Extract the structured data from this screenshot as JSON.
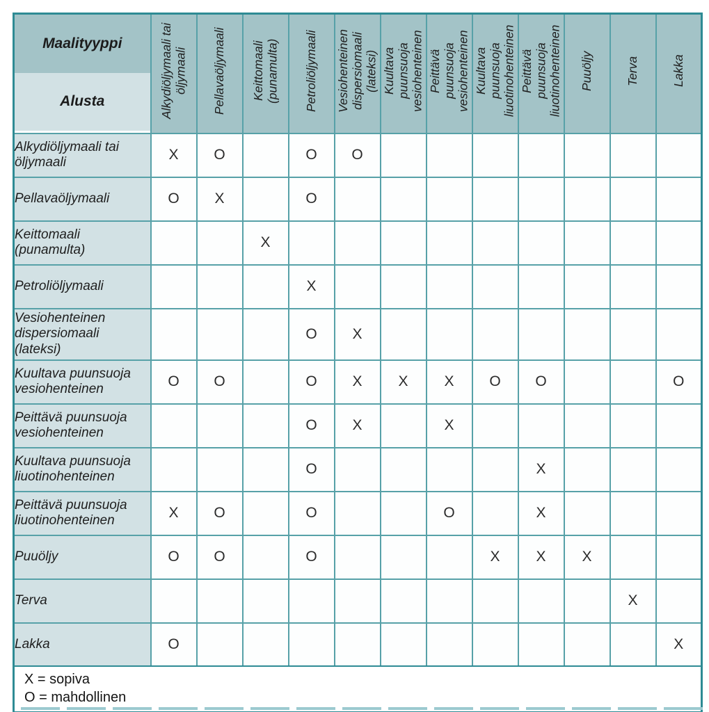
{
  "table": {
    "corner_top": "Maalityyppi",
    "corner_bottom": "Alusta",
    "columns": [
      "Alkydiöljymaali tai\nöljymaali",
      "Pellavaöljymaali",
      "Keittomaali\n(punamulta)",
      "Petroliöljymaali",
      "Vesiohenteinen\ndispersiomaali\n(lateksi)",
      "Kuultava\npuunsuoja\nvesiohenteinen",
      "Peittävä\npuunsuoja\nvesiohenteinen",
      "Kuultava\npuunsuoja\nliuotinohenteinen",
      "Peittävä\npuunsuoja\nliuotinohenteinen",
      "Puuöljy",
      "Terva",
      "Lakka"
    ],
    "rows": [
      {
        "label": "Alkydiöljymaali tai\nöljymaali",
        "marks": [
          "X",
          "O",
          "",
          "O",
          "O",
          "",
          "",
          "",
          "",
          "",
          "",
          ""
        ]
      },
      {
        "label": "Pellavaöljymaali",
        "marks": [
          "O",
          "X",
          "",
          "O",
          "",
          "",
          "",
          "",
          "",
          "",
          "",
          ""
        ]
      },
      {
        "label": "Keittomaali\n(punamulta)",
        "marks": [
          "",
          "",
          "X",
          "",
          "",
          "",
          "",
          "",
          "",
          "",
          "",
          ""
        ]
      },
      {
        "label": "Petroliöljymaali",
        "marks": [
          "",
          "",
          "",
          "X",
          "",
          "",
          "",
          "",
          "",
          "",
          "",
          ""
        ]
      },
      {
        "label": "Vesiohenteinen\ndispersiomaali\n(lateksi)",
        "marks": [
          "",
          "",
          "",
          "O",
          "X",
          "",
          "",
          "",
          "",
          "",
          "",
          ""
        ]
      },
      {
        "label": "Kuultava puunsuoja\nvesiohenteinen",
        "marks": [
          "O",
          "O",
          "",
          "O",
          "X",
          "X",
          "X",
          "O",
          "O",
          "",
          "",
          "O"
        ]
      },
      {
        "label": "Peittävä puunsuoja\nvesiohenteinen",
        "marks": [
          "",
          "",
          "",
          "O",
          "X",
          "",
          "X",
          "",
          "",
          "",
          "",
          ""
        ]
      },
      {
        "label": "Kuultava puunsuoja\nliuotinohenteinen",
        "marks": [
          "",
          "",
          "",
          "O",
          "",
          "",
          "",
          "",
          "X",
          "",
          "",
          ""
        ]
      },
      {
        "label": "Peittävä puunsuoja\nliuotinohenteinen",
        "marks": [
          "X",
          "O",
          "",
          "O",
          "",
          "",
          "O",
          "",
          "X",
          "",
          "",
          ""
        ]
      },
      {
        "label": "Puuöljy",
        "marks": [
          "O",
          "O",
          "",
          "O",
          "",
          "",
          "",
          "X",
          "X",
          "X",
          "",
          ""
        ]
      },
      {
        "label": "Terva",
        "marks": [
          "",
          "",
          "",
          "",
          "",
          "",
          "",
          "",
          "",
          "",
          "X",
          ""
        ]
      },
      {
        "label": "Lakka",
        "marks": [
          "O",
          "",
          "",
          "",
          "",
          "",
          "",
          "",
          "",
          "",
          "",
          "X"
        ]
      }
    ]
  },
  "legend": {
    "line1": "X = sopiva",
    "line2": "O = mahdollinen"
  },
  "colors": {
    "border_dark": "#2e8b94",
    "border_light": "#57a1a8",
    "header_bg": "#a3c3c7",
    "label_bg": "#d2e1e4",
    "cell_bg": "#fdfefe",
    "mark_text": "#2b2b2b",
    "dash": "#9ccad0"
  }
}
